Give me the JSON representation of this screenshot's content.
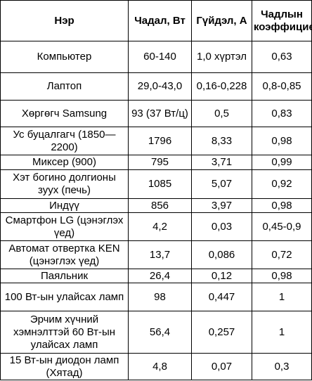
{
  "table": {
    "headers": [
      "Нэр",
      "Чадал, Вт",
      "Гүйдэл, А",
      "Чадлын коэффициент"
    ],
    "rows": [
      {
        "name": "Компьютер",
        "power": "60-140",
        "current": "1,0 хүртэл",
        "factor": "0,63"
      },
      {
        "name": "Лаптоп",
        "power": "29,0-43,0",
        "current": "0,16-0,228",
        "factor": "0,8-0,85"
      },
      {
        "name": "Хөргөгч Samsung",
        "power": "93 (37 Вт/ц)",
        "current": "0,5",
        "factor": "0,83"
      },
      {
        "name": "Ус буцалгагч (1850—2200)",
        "power": "1796",
        "current": "8,33",
        "factor": "0,98"
      },
      {
        "name": "Миксер (900)",
        "power": "795",
        "current": "3,71",
        "factor": "0,99"
      },
      {
        "name": "Хэт богино долгионы зуух (печь)",
        "power": "1085",
        "current": "5,07",
        "factor": "0,92"
      },
      {
        "name": "Индүү",
        "power": "856",
        "current": "3,97",
        "factor": "0,98"
      },
      {
        "name": "Смартфон LG (цэнэглэх үед)",
        "power": "4,2",
        "current": "0,03",
        "factor": "0,45-0,9"
      },
      {
        "name": "Автомат отвертка KEN (цэнэглэх үед)",
        "power": "13,7",
        "current": "0,086",
        "factor": "0,72"
      },
      {
        "name": "Паяльник",
        "power": "26,4",
        "current": "0,12",
        "factor": "0,98"
      },
      {
        "name": "100 Вт-ын улайсах ламп",
        "power": "98",
        "current": "0,447",
        "factor": "1"
      },
      {
        "name": "Эрчим хүчний хэмнэлттэй 60 Вт-ын улайсах ламп",
        "power": "56,4",
        "current": "0,257",
        "factor": "1"
      },
      {
        "name": "15 Вт-ын диодон ламп (Хятад)",
        "power": "4,8",
        "current": "0,07",
        "factor": "0,3"
      }
    ]
  }
}
